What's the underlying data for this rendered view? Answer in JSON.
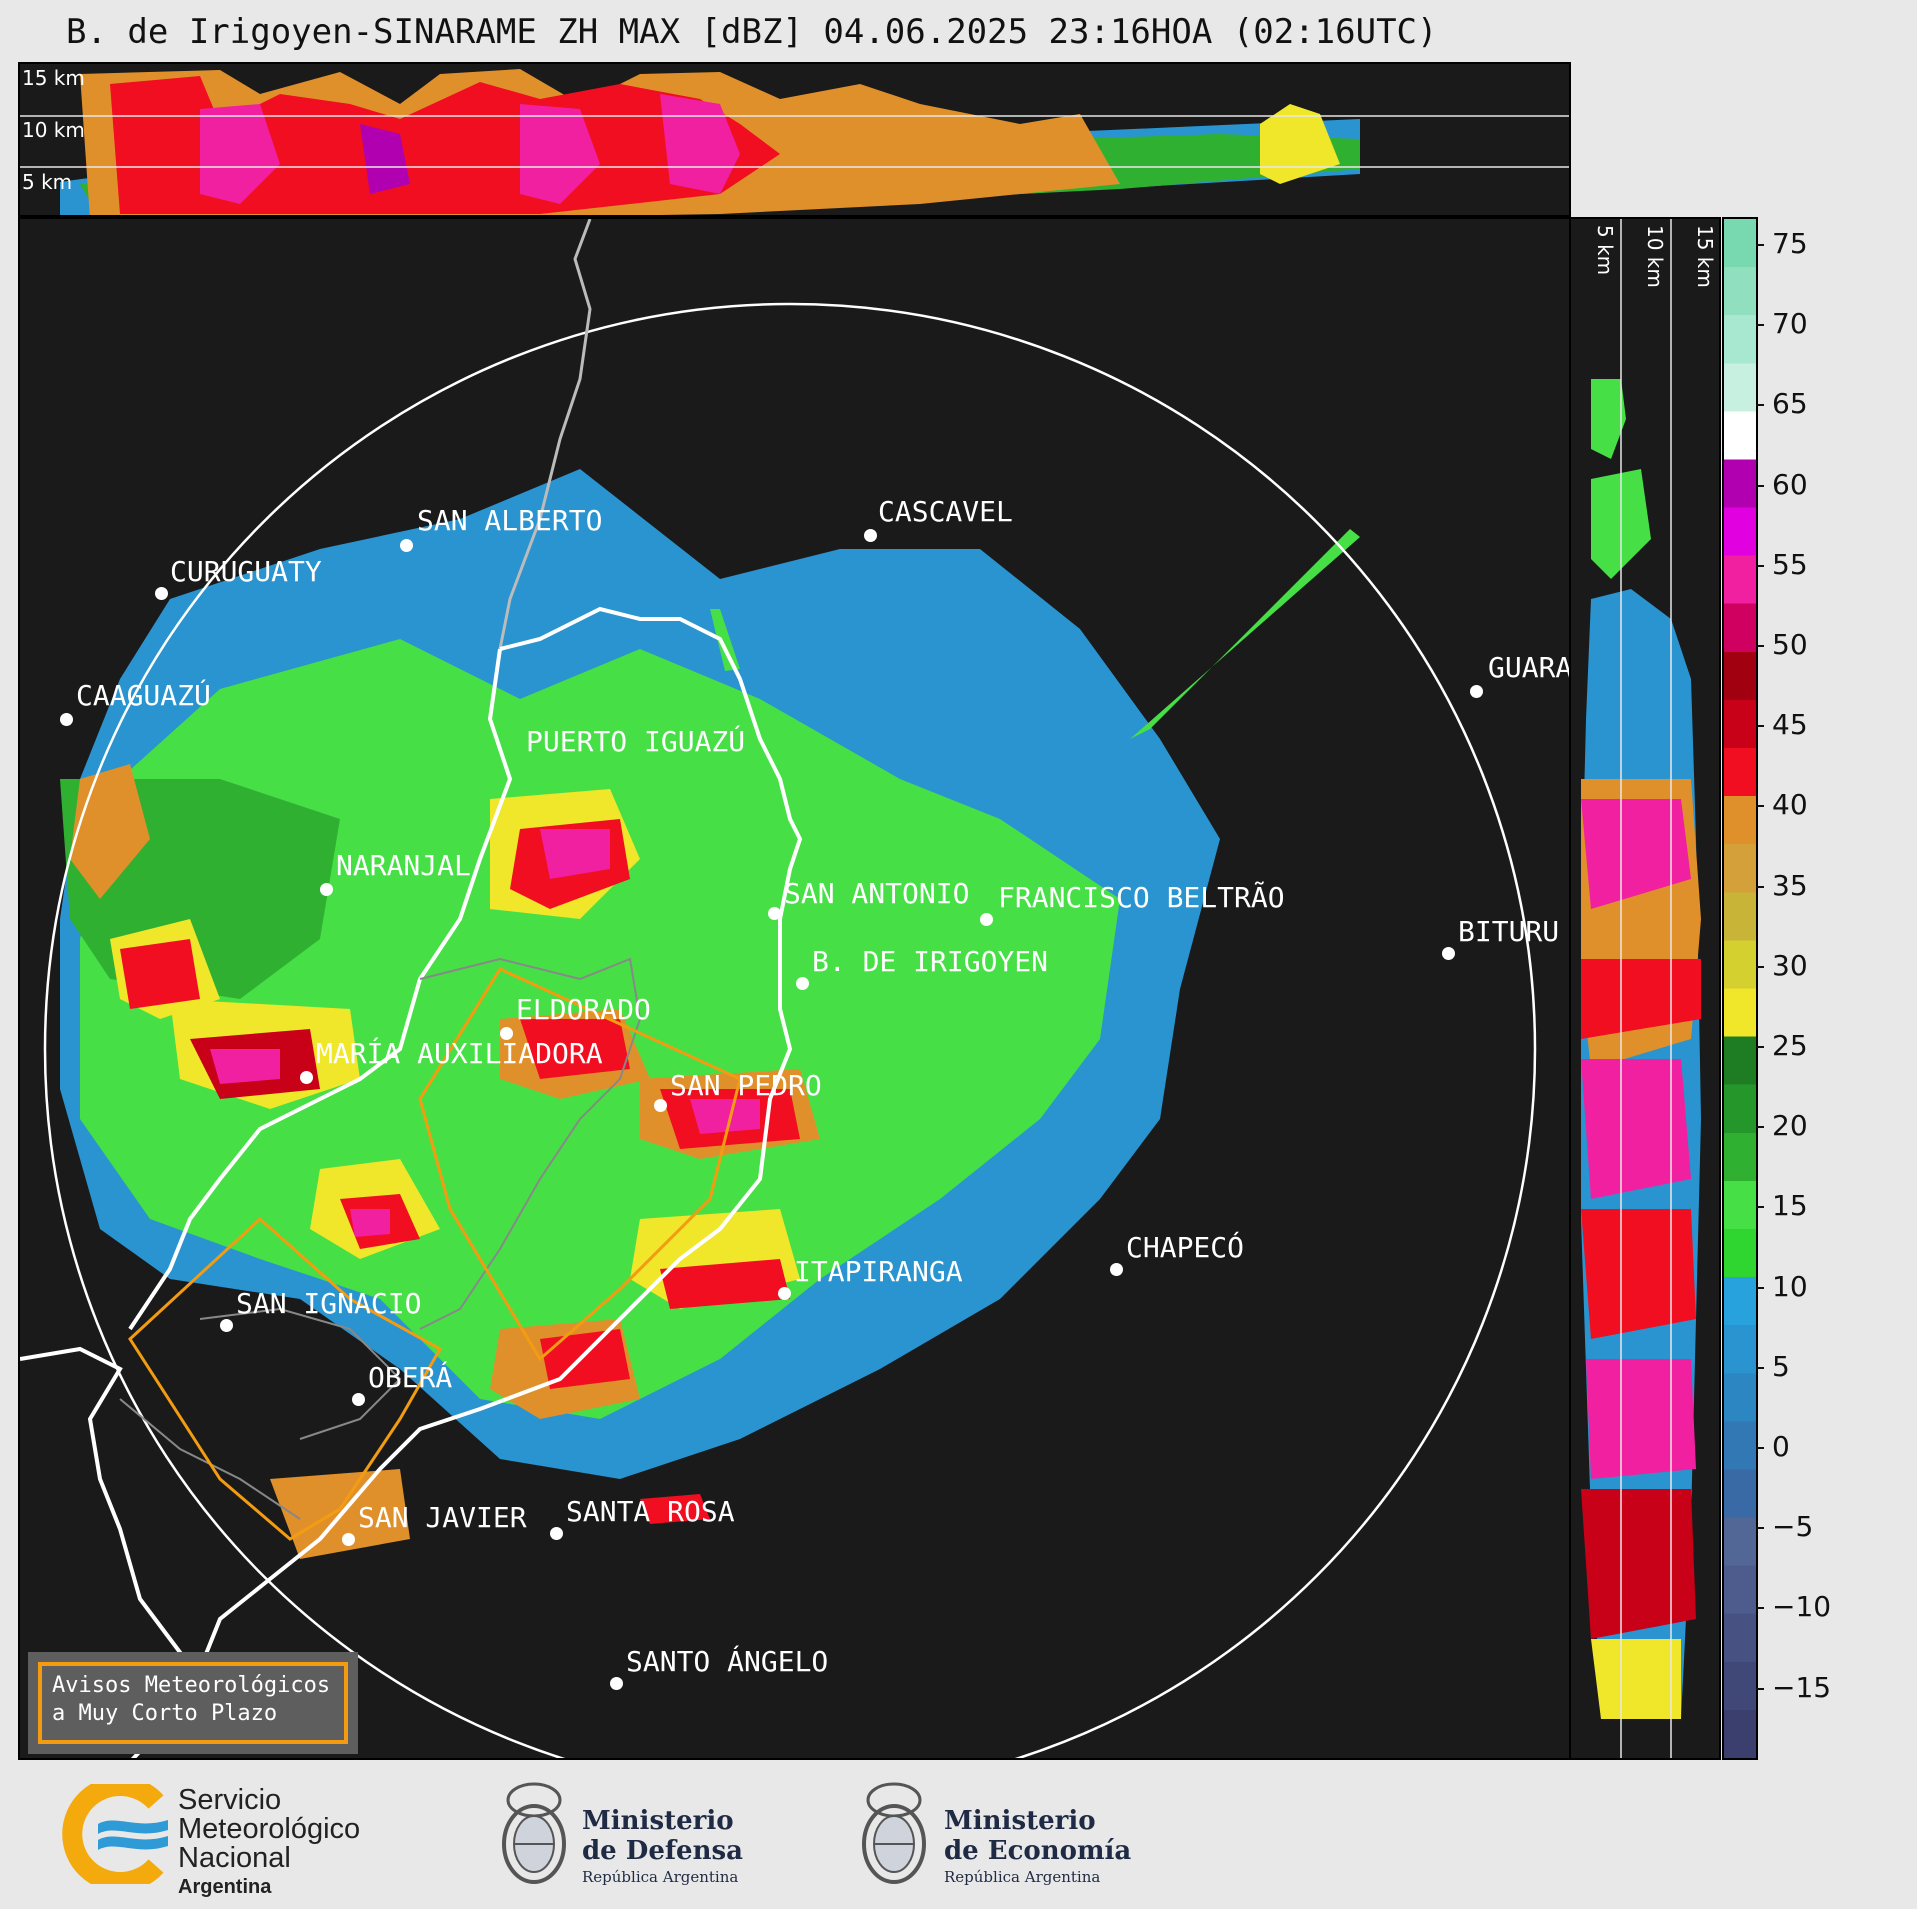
{
  "title": "B. de Irigoyen-SINARAME ZH MAX [dBZ] 04.06.2025 23:16HOA (02:16UTC)",
  "top_panel": {
    "height_labels": [
      "15 km",
      "10 km",
      "5 km"
    ]
  },
  "side_panel": {
    "height_labels": [
      "5 km",
      "10 km",
      "15 km"
    ]
  },
  "cities": [
    {
      "id": "curuguaty",
      "name": "CURUGUATY"
    },
    {
      "id": "san-alberto",
      "name": "SAN ALBERTO"
    },
    {
      "id": "cascavel",
      "name": "CASCAVEL"
    },
    {
      "id": "guarapuava",
      "name": "GUARA"
    },
    {
      "id": "caaguazu",
      "name": "CAAGUAZÚ"
    },
    {
      "id": "puerto-iguazu",
      "name": "PUERTO IGUAZÚ"
    },
    {
      "id": "naranjal",
      "name": "NARANJAL"
    },
    {
      "id": "san-antonio",
      "name": "SAN ANTONIO"
    },
    {
      "id": "francisco-beltrao",
      "name": "FRANCISCO BELTRÃO"
    },
    {
      "id": "b-de-irigoyen",
      "name": "B. DE IRIGOYEN"
    },
    {
      "id": "bituruna",
      "name": "BITURU"
    },
    {
      "id": "eldorado",
      "name": "ELDORADO"
    },
    {
      "id": "maria-auxiliadora",
      "name": "MARÍA AUXILIADORA"
    },
    {
      "id": "san-pedro",
      "name": "SAN PEDRO"
    },
    {
      "id": "chapeco",
      "name": "CHAPECÓ"
    },
    {
      "id": "itapiranga",
      "name": "ITAPIRANGA"
    },
    {
      "id": "san-ignacio",
      "name": "SAN IGNACIO"
    },
    {
      "id": "obera",
      "name": "OBERÁ"
    },
    {
      "id": "san-javier",
      "name": "SAN JAVIER"
    },
    {
      "id": "santa-rosa",
      "name": "SANTA ROSA"
    },
    {
      "id": "santo-angelo",
      "name": "SANTO ÁNGELO"
    }
  ],
  "colorbar": {
    "unit": "dBZ",
    "ticks": [
      "75",
      "70",
      "65",
      "60",
      "55",
      "50",
      "45",
      "40",
      "35",
      "30",
      "25",
      "20",
      "15",
      "10",
      "5",
      "0",
      "−5",
      "−10",
      "−15"
    ],
    "colors": [
      "#3b3f6e",
      "#404878",
      "#475282",
      "#4d5c8c",
      "#536797",
      "#3a6aa6",
      "#3278b4",
      "#2b86c2",
      "#2994cf",
      "#27a2dc",
      "#2fd62f",
      "#46e046",
      "#30b030",
      "#25962a",
      "#1e7d22",
      "#f0e62a",
      "#d4d030",
      "#c8b436",
      "#d4a03a",
      "#e0902a",
      "#f00e20",
      "#c80018",
      "#a00010",
      "#d00060",
      "#f020a0",
      "#e000e0",
      "#b000b0",
      "#ffffff",
      "#c8f0e0",
      "#a8e8d0",
      "#90e0c0",
      "#78d8b0"
    ]
  },
  "warning_box": {
    "line1": "Avisos Meteorológicos",
    "line2": "a Muy Corto Plazo"
  },
  "logos": {
    "smn": {
      "line1": "Servicio",
      "line2": "Meteorológico",
      "line3": "Nacional",
      "line4": "Argentina"
    },
    "defensa": {
      "line1": "Ministerio",
      "line2": "de Defensa",
      "line3": "República Argentina"
    },
    "economia": {
      "line1": "Ministerio",
      "line2": "de Economía",
      "line3": "República Argentina"
    }
  },
  "palette": {
    "background": "#1a1a1a",
    "range_ring": "#ffffff",
    "province_border": "#ffffff",
    "warning_polygon": "#f39c12"
  }
}
